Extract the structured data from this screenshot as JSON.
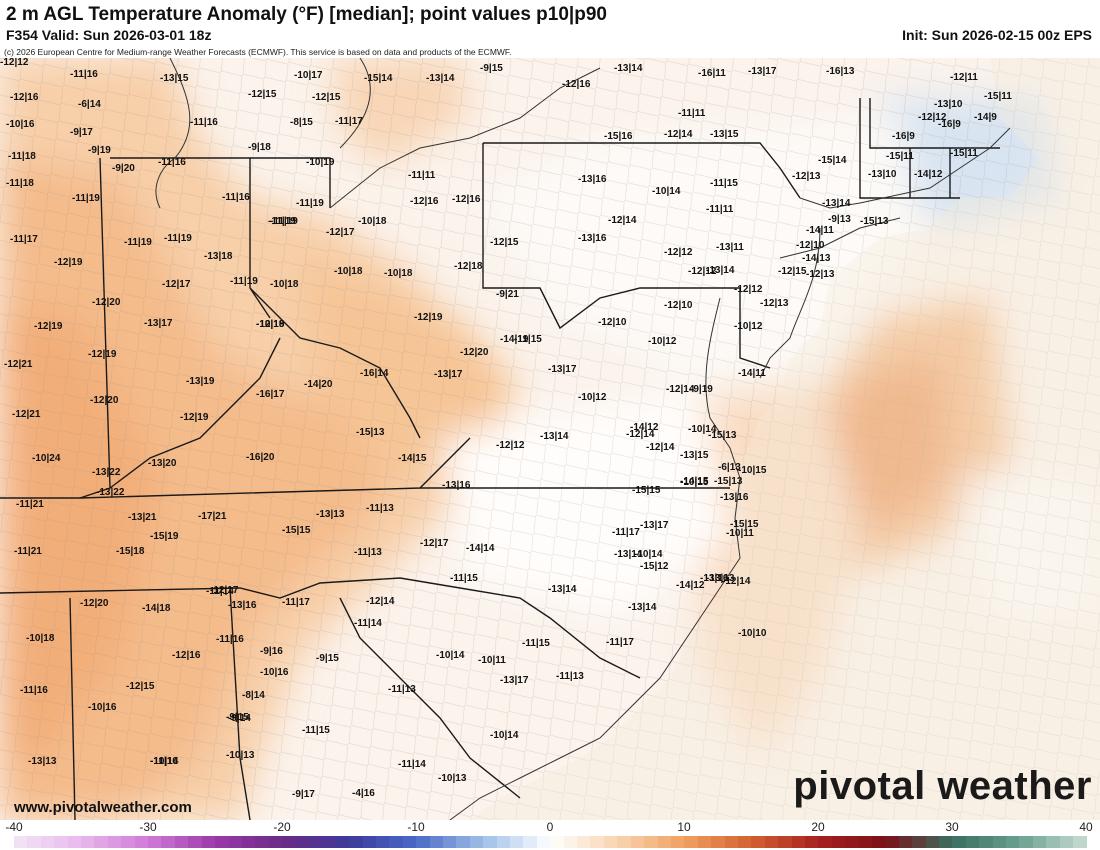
{
  "header": {
    "title": "2 m AGL Temperature Anomaly (°F) [median]; point values p10|p90",
    "valid": "F354 Valid: Sun 2026-03-01 18z",
    "init": "Init: Sun 2026-02-15 00z EPS",
    "copyright": "(c) 2026 European Centre for Medium-range Weather Forecasts (ECMWF). This service is based on data and products of the ECMWF."
  },
  "branding": {
    "website": "www.pivotalweather.com",
    "logo_text": "pivotal weather"
  },
  "colorbar": {
    "ticks": [
      "-40",
      "-30",
      "-20",
      "-10",
      "0",
      "10",
      "20",
      "30",
      "40"
    ],
    "range": [
      -40,
      40
    ],
    "unit": "°F"
  },
  "point_values": [
    {
      "text": "-11|16"
    },
    {
      "text": "-12|16"
    },
    {
      "text": "-6|14"
    },
    {
      "text": "-10|16"
    },
    {
      "text": "-9|17"
    },
    {
      "text": "-9|19"
    },
    {
      "text": "-11|18"
    },
    {
      "text": "-9|20"
    },
    {
      "text": "-11|16"
    },
    {
      "text": "-11|18"
    },
    {
      "text": "-11|19"
    },
    {
      "text": "-11|16"
    },
    {
      "text": "-11|17"
    },
    {
      "text": "-11|19"
    },
    {
      "text": "-11|19"
    },
    {
      "text": "-12|19"
    },
    {
      "text": "-13|18"
    },
    {
      "text": "-11|19"
    },
    {
      "text": "-12|17"
    },
    {
      "text": "-11|19"
    },
    {
      "text": "-12|20"
    },
    {
      "text": "-10|18"
    },
    {
      "text": "-13|17"
    },
    {
      "text": "-12|19"
    },
    {
      "text": "-12|18"
    },
    {
      "text": "-12|19"
    },
    {
      "text": "-12|21"
    },
    {
      "text": "-13|19"
    },
    {
      "text": "-14|20"
    },
    {
      "text": "-16|17"
    },
    {
      "text": "-12|20"
    },
    {
      "text": "-12|19"
    },
    {
      "text": "-12|21"
    },
    {
      "text": "-10|24"
    },
    {
      "text": "-13|22"
    },
    {
      "text": "-13|20"
    },
    {
      "text": "-16|20"
    },
    {
      "text": "-13|22"
    },
    {
      "text": "-11|21"
    },
    {
      "text": "-13|21"
    },
    {
      "text": "-17|21"
    },
    {
      "text": "-15|19"
    },
    {
      "text": "-11|21"
    },
    {
      "text": "-15|18"
    },
    {
      "text": "-12|20"
    },
    {
      "text": "-14|18"
    },
    {
      "text": "-12|17"
    },
    {
      "text": "-10|18"
    },
    {
      "text": "-13|16"
    },
    {
      "text": "-11|16"
    },
    {
      "text": "-12|16"
    },
    {
      "text": "-11|16"
    },
    {
      "text": "-12|15"
    },
    {
      "text": "-10|16"
    },
    {
      "text": "-9|15"
    },
    {
      "text": "-11|16"
    },
    {
      "text": "-13|13"
    },
    {
      "text": "-13|15"
    },
    {
      "text": "-10|17"
    },
    {
      "text": "-15|14"
    },
    {
      "text": "-13|14"
    },
    {
      "text": "-9|15"
    },
    {
      "text": "-12|16"
    },
    {
      "text": "-12|15"
    },
    {
      "text": "-12|15"
    },
    {
      "text": "-11|16"
    },
    {
      "text": "-8|15"
    },
    {
      "text": "-11|17"
    },
    {
      "text": "-9|18"
    },
    {
      "text": "-10|19"
    },
    {
      "text": "-11|19"
    },
    {
      "text": "-11|19"
    },
    {
      "text": "-12|17"
    },
    {
      "text": "-10|18"
    },
    {
      "text": "-10|18"
    },
    {
      "text": "-10|18"
    },
    {
      "text": "-12|18"
    },
    {
      "text": "-10|19"
    },
    {
      "text": "-12|19"
    },
    {
      "text": "-12|20"
    },
    {
      "text": "-13|17"
    },
    {
      "text": "-14|19"
    },
    {
      "text": "-16|14"
    },
    {
      "text": "-15|13"
    },
    {
      "text": "-14|15"
    },
    {
      "text": "-13|16"
    },
    {
      "text": "-15|15"
    },
    {
      "text": "-13|13"
    },
    {
      "text": "-11|13"
    },
    {
      "text": "-11|13"
    },
    {
      "text": "-12|17"
    },
    {
      "text": "-14|14"
    },
    {
      "text": "-11|14"
    },
    {
      "text": "-11|17"
    },
    {
      "text": "-12|14"
    },
    {
      "text": "-11|14"
    },
    {
      "text": "-11|15"
    },
    {
      "text": "-9|16"
    },
    {
      "text": "-10|16"
    },
    {
      "text": "-9|15"
    },
    {
      "text": "-8|14"
    },
    {
      "text": "-9|14"
    },
    {
      "text": "-11|15"
    },
    {
      "text": "-10|13"
    },
    {
      "text": "-10|14"
    },
    {
      "text": "-10|14"
    },
    {
      "text": "-10|11"
    },
    {
      "text": "-11|13"
    },
    {
      "text": "-9|17"
    },
    {
      "text": "-4|16"
    },
    {
      "text": "-10|14"
    },
    {
      "text": "-11|14"
    },
    {
      "text": "-11|13"
    },
    {
      "text": "-10|13"
    },
    {
      "text": "-11|15"
    },
    {
      "text": "-11|17"
    },
    {
      "text": "-10|14"
    },
    {
      "text": "-13|14"
    },
    {
      "text": "-13|17"
    },
    {
      "text": "-13|14"
    },
    {
      "text": "-16|11"
    },
    {
      "text": "-13|17"
    },
    {
      "text": "-15|16"
    },
    {
      "text": "-12|14"
    },
    {
      "text": "-13|15"
    },
    {
      "text": "-11|11"
    },
    {
      "text": "-11|11"
    },
    {
      "text": "-13|16"
    },
    {
      "text": "-10|14"
    },
    {
      "text": "-11|15"
    },
    {
      "text": "-12|16"
    },
    {
      "text": "-12|16"
    },
    {
      "text": "-12|15"
    },
    {
      "text": "-13|16"
    },
    {
      "text": "-12|14"
    },
    {
      "text": "-11|11"
    },
    {
      "text": "-12|12"
    },
    {
      "text": "-13|11"
    },
    {
      "text": "-13|14"
    },
    {
      "text": "-9|21"
    },
    {
      "text": "-12|12"
    },
    {
      "text": "-12|10"
    },
    {
      "text": "-10|12"
    },
    {
      "text": "-12|10"
    },
    {
      "text": "-11|15"
    },
    {
      "text": "-13|17"
    },
    {
      "text": "-10|12"
    },
    {
      "text": "-12|14"
    },
    {
      "text": "-14|11"
    },
    {
      "text": "-10|14"
    },
    {
      "text": "-12|14"
    },
    {
      "text": "-14|12"
    },
    {
      "text": "-15|13"
    },
    {
      "text": "-12|12"
    },
    {
      "text": "-13|14"
    },
    {
      "text": "-15|15"
    },
    {
      "text": "-13|15"
    },
    {
      "text": "-14|15"
    },
    {
      "text": "-13|16"
    },
    {
      "text": "-13|17"
    },
    {
      "text": "-11|17"
    },
    {
      "text": "-13|14"
    },
    {
      "text": "-13|16"
    },
    {
      "text": "-10|15"
    },
    {
      "text": "-15|13"
    },
    {
      "text": "-16|13"
    },
    {
      "text": "-12|11"
    },
    {
      "text": "-15|11"
    },
    {
      "text": "-13|10"
    },
    {
      "text": "-16|9"
    },
    {
      "text": "-12|12"
    },
    {
      "text": "-14|9"
    },
    {
      "text": "-16|9"
    },
    {
      "text": "-15|11"
    },
    {
      "text": "-15|11"
    },
    {
      "text": "-13|10"
    },
    {
      "text": "-14|12"
    },
    {
      "text": "-15|14"
    },
    {
      "text": "-12|13"
    },
    {
      "text": "-13|14"
    },
    {
      "text": "-9|13"
    },
    {
      "text": "-15|13"
    },
    {
      "text": "-14|11"
    },
    {
      "text": "-12|10"
    },
    {
      "text": "-14|13"
    },
    {
      "text": "-12|15"
    },
    {
      "text": "-12|13"
    },
    {
      "text": "-12|12"
    },
    {
      "text": "-12|13"
    },
    {
      "text": "-10|12"
    },
    {
      "text": "-12|14"
    },
    {
      "text": "-9|19"
    },
    {
      "text": "-6|13"
    },
    {
      "text": "-10|15"
    },
    {
      "text": "-15|15"
    },
    {
      "text": "-12|14"
    },
    {
      "text": "-10|10"
    },
    {
      "text": "-10|11"
    },
    {
      "text": "-13|13"
    },
    {
      "text": "-13|14"
    },
    {
      "text": "-14|12"
    },
    {
      "text": "-15|12"
    },
    {
      "text": "-12|12"
    }
  ]
}
